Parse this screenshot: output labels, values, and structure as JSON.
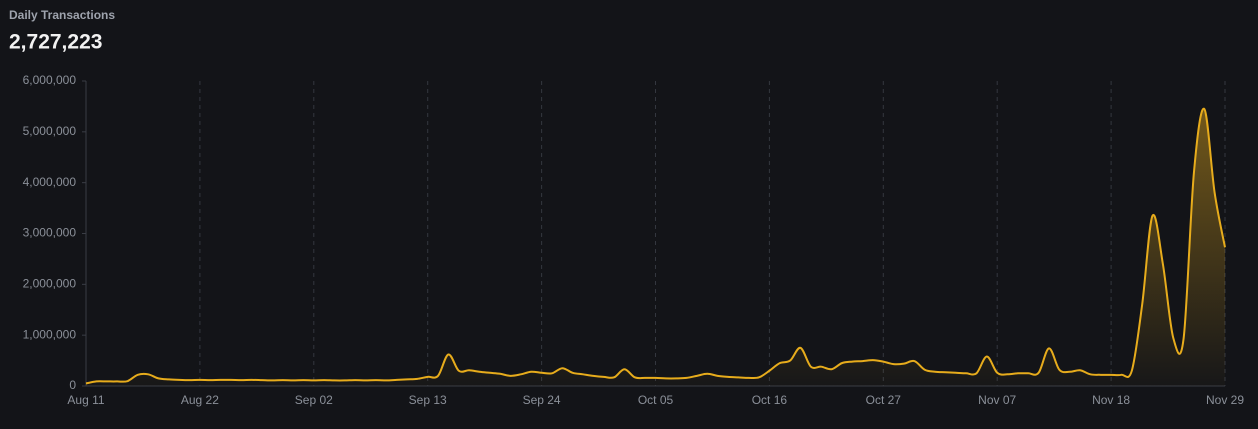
{
  "chart_data": {
    "type": "area",
    "title": "Daily Transactions",
    "headline": "2,727,223",
    "color": "#e7ac1c",
    "categories": [
      "Aug 11",
      null,
      null,
      null,
      null,
      null,
      null,
      null,
      null,
      null,
      null,
      "Aug 22",
      null,
      null,
      null,
      null,
      null,
      null,
      null,
      null,
      null,
      null,
      "Sep 02",
      null,
      null,
      null,
      null,
      null,
      null,
      null,
      null,
      null,
      null,
      "Sep 13",
      null,
      null,
      null,
      null,
      null,
      null,
      null,
      null,
      null,
      null,
      "Sep 24",
      null,
      null,
      null,
      null,
      null,
      null,
      null,
      null,
      null,
      null,
      "Oct 05",
      null,
      null,
      null,
      null,
      null,
      null,
      null,
      null,
      null,
      null,
      "Oct 16",
      null,
      null,
      null,
      null,
      null,
      null,
      null,
      null,
      null,
      null,
      "Oct 27",
      null,
      null,
      null,
      null,
      null,
      null,
      null,
      null,
      null,
      null,
      "Nov 07",
      null,
      null,
      null,
      null,
      null,
      null,
      null,
      null,
      null,
      null,
      "Nov 18",
      null,
      null,
      null,
      null,
      null,
      null,
      null,
      null,
      null,
      null,
      "Nov 29"
    ],
    "values": [
      50000,
      90000,
      90000,
      90000,
      95000,
      220000,
      230000,
      150000,
      130000,
      120000,
      115000,
      120000,
      115000,
      120000,
      120000,
      115000,
      120000,
      115000,
      110000,
      115000,
      110000,
      115000,
      110000,
      115000,
      110000,
      110000,
      115000,
      110000,
      115000,
      110000,
      120000,
      130000,
      140000,
      180000,
      200000,
      620000,
      300000,
      310000,
      280000,
      260000,
      240000,
      200000,
      230000,
      280000,
      260000,
      250000,
      350000,
      260000,
      230000,
      200000,
      180000,
      170000,
      330000,
      170000,
      160000,
      160000,
      150000,
      150000,
      160000,
      200000,
      240000,
      200000,
      180000,
      170000,
      160000,
      170000,
      300000,
      450000,
      500000,
      750000,
      380000,
      380000,
      330000,
      450000,
      480000,
      490000,
      510000,
      480000,
      430000,
      440000,
      490000,
      320000,
      280000,
      270000,
      260000,
      250000,
      250000,
      580000,
      260000,
      230000,
      250000,
      250000,
      260000,
      740000,
      320000,
      280000,
      310000,
      230000,
      220000,
      220000,
      220000,
      300000,
      1600000,
      3350000,
      2400000,
      950000,
      930000,
      4200000,
      5450000,
      3800000,
      2727223
    ],
    "ylim": [
      0,
      6000000
    ],
    "yticks": [
      0,
      {
        "value": 1000000,
        "label": "1,000,000"
      },
      {
        "value": 2000000,
        "label": "2,000,000"
      },
      {
        "value": 3000000,
        "label": "3,000,000"
      },
      {
        "value": 4000000,
        "label": "4,000,000"
      },
      {
        "value": 5000000,
        "label": "5,000,000"
      },
      {
        "value": 6000000,
        "label": "6,000,000"
      }
    ],
    "grid": true
  }
}
